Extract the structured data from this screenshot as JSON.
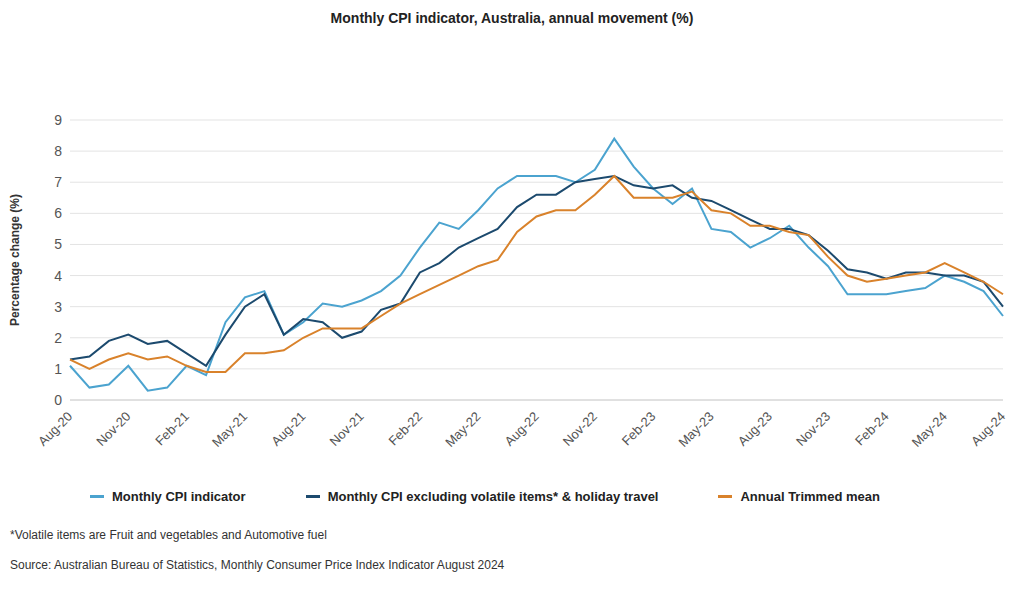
{
  "chart_data": {
    "type": "line",
    "title": "Monthly CPI indicator, Australia, annual movement (%)",
    "y_label": "Percentage change (%)",
    "categories": [
      "Aug-20",
      null,
      null,
      "Nov-20",
      null,
      null,
      "Feb-21",
      null,
      null,
      "May-21",
      null,
      null,
      "Aug-21",
      null,
      null,
      "Nov-21",
      null,
      null,
      "Feb-22",
      null,
      null,
      "May-22",
      null,
      null,
      "Aug-22",
      null,
      null,
      "Nov-22",
      null,
      null,
      "Feb-23",
      null,
      null,
      "May-23",
      null,
      null,
      "Aug-23",
      null,
      null,
      "Nov-23",
      null,
      null,
      "Feb-24",
      null,
      null,
      "May-24",
      null,
      null,
      "Aug-24"
    ],
    "series": [
      {
        "name": "Monthly CPI indicator",
        "color": "#4ba3cf",
        "values": [
          1.1,
          0.4,
          0.5,
          1.1,
          0.3,
          0.4,
          1.1,
          0.8,
          2.5,
          3.3,
          3.5,
          2.1,
          2.5,
          3.1,
          3.0,
          3.2,
          3.5,
          4.0,
          4.9,
          5.7,
          5.5,
          6.1,
          6.8,
          7.2,
          7.2,
          7.2,
          7.0,
          7.4,
          8.4,
          7.5,
          6.8,
          6.3,
          6.8,
          5.5,
          5.4,
          4.9,
          5.2,
          5.6,
          4.9,
          4.3,
          3.4,
          3.4,
          3.4,
          3.5,
          3.6,
          4.0,
          3.8,
          3.5,
          2.7
        ]
      },
      {
        "name": "Monthly CPI excluding volatile items* & holiday travel",
        "color": "#1c4a6e",
        "values": [
          1.3,
          1.4,
          1.9,
          2.1,
          1.8,
          1.9,
          1.5,
          1.1,
          2.1,
          3.0,
          3.4,
          2.1,
          2.6,
          2.5,
          2.0,
          2.2,
          2.9,
          3.1,
          4.1,
          4.4,
          4.9,
          5.2,
          5.5,
          6.2,
          6.6,
          6.6,
          7.0,
          7.1,
          7.2,
          6.9,
          6.8,
          6.9,
          6.5,
          6.4,
          6.1,
          5.8,
          5.5,
          5.5,
          5.3,
          4.8,
          4.2,
          4.1,
          3.9,
          4.1,
          4.1,
          4.0,
          4.0,
          3.8,
          3.0
        ]
      },
      {
        "name": "Annual Trimmed mean",
        "color": "#d9822b",
        "values": [
          1.3,
          1.0,
          1.3,
          1.5,
          1.3,
          1.4,
          1.1,
          0.9,
          0.9,
          1.5,
          1.5,
          1.6,
          2.0,
          2.3,
          2.3,
          2.3,
          2.7,
          3.1,
          3.4,
          3.7,
          4.0,
          4.3,
          4.5,
          5.4,
          5.9,
          6.1,
          6.1,
          6.6,
          7.2,
          6.5,
          6.5,
          6.5,
          6.7,
          6.1,
          6.0,
          5.6,
          5.6,
          5.4,
          5.3,
          4.6,
          4.0,
          3.8,
          3.9,
          4.0,
          4.1,
          4.4,
          4.1,
          3.8,
          3.4
        ]
      }
    ],
    "ylim": [
      0,
      9
    ],
    "yticks": [
      0,
      1,
      2,
      3,
      4,
      5,
      6,
      7,
      8,
      9
    ],
    "grid": true,
    "legend": "bottom",
    "footnotes": [
      "*Volatile items are Fruit and vegetables and Automotive fuel",
      "Source: Australian Bureau of Statistics, Monthly Consumer Price Index Indicator August 2024"
    ]
  }
}
